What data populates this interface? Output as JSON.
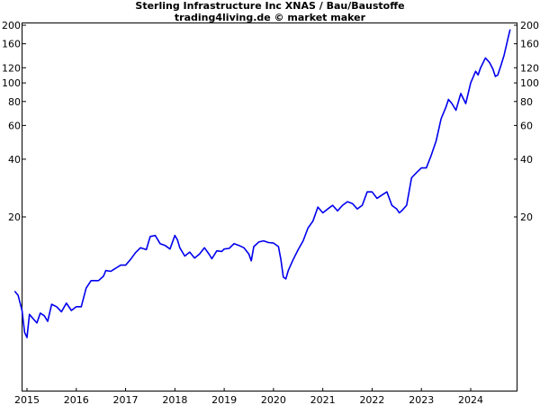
{
  "header": {
    "title": "Sterling Infrastructure Inc XNAS / Bau/Baustoffe",
    "subtitle": "trading4living.de © market maker"
  },
  "chart_data": {
    "type": "line",
    "title": "Sterling Infrastructure Inc XNAS / Bau/Baustoffe",
    "subtitle": "trading4living.de © market maker",
    "xlabel": "",
    "ylabel": "",
    "y_scale": "log",
    "ylim": [
      4.5,
      220
    ],
    "xlim": [
      2014.75,
      2025.0
    ],
    "grid": false,
    "x_ticks": [
      2015,
      2016,
      2017,
      2018,
      2019,
      2020,
      2021,
      2022,
      2023,
      2024
    ],
    "x_tick_labels": [
      "2015",
      "2016",
      "2017",
      "2018",
      "2019",
      "2020",
      "2021",
      "2022",
      "2023",
      "2024"
    ],
    "y_ticks": [
      20,
      40,
      60,
      80,
      100,
      120,
      160,
      200
    ],
    "y_tick_labels": [
      "20",
      "40",
      "60",
      "80",
      "100",
      "120",
      "160",
      "200"
    ],
    "line_color": "#0000ee",
    "series": [
      {
        "x": [
          2014.75,
          2014.82,
          2014.9,
          2014.95,
          2015.0,
          2015.05,
          2015.12,
          2015.2,
          2015.27,
          2015.35,
          2015.42,
          2015.5,
          2015.6,
          2015.7,
          2015.8,
          2015.9,
          2016.0,
          2016.1,
          2016.2,
          2016.3,
          2016.45,
          2016.55,
          2016.6,
          2016.7,
          2016.8,
          2016.9,
          2017.0,
          2017.1,
          2017.2,
          2017.3,
          2017.42,
          2017.5,
          2017.6,
          2017.7,
          2017.8,
          2017.9,
          2018.0,
          2018.05,
          2018.1,
          2018.2,
          2018.3,
          2018.4,
          2018.5,
          2018.6,
          2018.7,
          2018.75,
          2018.85,
          2018.95,
          2019.0,
          2019.1,
          2019.2,
          2019.3,
          2019.4,
          2019.5,
          2019.55,
          2019.6,
          2019.7,
          2019.8,
          2019.9,
          2020.0,
          2020.1,
          2020.15,
          2020.2,
          2020.25,
          2020.3,
          2020.4,
          2020.5,
          2020.6,
          2020.7,
          2020.8,
          2020.9,
          2021.0,
          2021.1,
          2021.2,
          2021.3,
          2021.4,
          2021.5,
          2021.6,
          2021.7,
          2021.8,
          2021.9,
          2022.0,
          2022.1,
          2022.2,
          2022.3,
          2022.4,
          2022.5,
          2022.55,
          2022.6,
          2022.7,
          2022.8,
          2022.9,
          2023.0,
          2023.1,
          2023.2,
          2023.3,
          2023.4,
          2023.5,
          2023.55,
          2023.62,
          2023.7,
          2023.8,
          2023.9,
          2024.0,
          2024.1,
          2024.15,
          2024.2,
          2024.3,
          2024.38,
          2024.45,
          2024.5,
          2024.55,
          2024.62,
          2024.68,
          2024.75,
          2024.8
        ],
        "y": [
          8.2,
          7.8,
          6.5,
          5.0,
          4.7,
          6.2,
          5.9,
          5.6,
          6.3,
          6.1,
          5.7,
          7.0,
          6.8,
          6.4,
          7.1,
          6.5,
          6.8,
          6.8,
          8.5,
          9.3,
          9.3,
          9.8,
          10.5,
          10.4,
          10.8,
          11.2,
          11.2,
          12.0,
          13.0,
          13.8,
          13.5,
          15.8,
          16.0,
          14.5,
          14.2,
          13.6,
          16.0,
          15.2,
          13.8,
          12.5,
          13.1,
          12.2,
          12.8,
          13.8,
          12.7,
          12.1,
          13.3,
          13.2,
          13.6,
          13.7,
          14.5,
          14.2,
          13.8,
          12.8,
          11.8,
          14.0,
          14.8,
          15.0,
          14.7,
          14.6,
          14.0,
          12.0,
          9.7,
          9.5,
          10.5,
          12.0,
          13.5,
          15.0,
          17.5,
          19.0,
          22.5,
          21.0,
          22.0,
          23.0,
          21.5,
          23.0,
          24.0,
          23.5,
          22.0,
          23.0,
          27.0,
          27.0,
          25.0,
          26.0,
          27.0,
          23.0,
          22.0,
          21.0,
          21.5,
          23.0,
          32.0,
          34.0,
          36.0,
          36.0,
          42.0,
          50.0,
          65.0,
          75.0,
          82.0,
          78.0,
          72.0,
          88.0,
          78.0,
          100.0,
          115.0,
          110.0,
          120.0,
          135.0,
          128.0,
          118.0,
          108.0,
          110.0,
          125.0,
          140.0,
          168.0,
          190.0
        ]
      }
    ]
  }
}
